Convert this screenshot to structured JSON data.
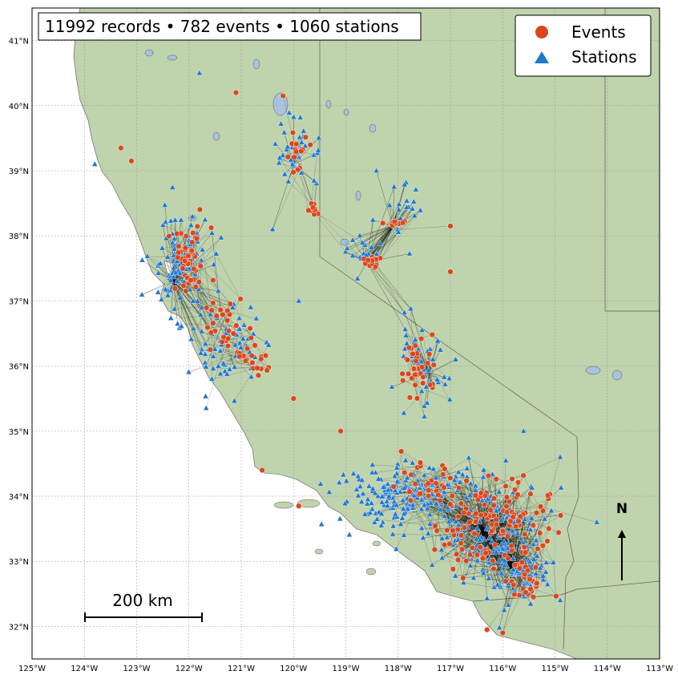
{
  "summary": {
    "text": "11992 records • 782 events • 1060 stations",
    "records": 11992,
    "events": 782,
    "stations": 1060
  },
  "legend": {
    "placement": "top-right",
    "items": [
      {
        "label": "Events",
        "marker": "circle",
        "color": "#d9481c"
      },
      {
        "label": "Stations",
        "marker": "triangle",
        "color": "#1f78d1"
      }
    ]
  },
  "scale_bar": {
    "label": "200 km"
  },
  "north_arrow": {
    "label": "N"
  },
  "colors": {
    "land_foreign": "#bfd3ad",
    "ocean": "#ffffff",
    "lake": "#a9c3de",
    "event": "#d9481c",
    "station": "#1f78d1",
    "path": "#000000",
    "border": "#5a5a5a"
  },
  "map_extent": {
    "lon_min": -125,
    "lon_max": -113,
    "lat_min": 31.5,
    "lat_max": 41.5
  },
  "axes": {
    "x_ticks": [
      {
        "value": -125,
        "label": "125°W"
      },
      {
        "value": -124,
        "label": "124°W"
      },
      {
        "value": -123,
        "label": "123°W"
      },
      {
        "value": -122,
        "label": "122°W"
      },
      {
        "value": -121,
        "label": "121°W"
      },
      {
        "value": -120,
        "label": "120°W"
      },
      {
        "value": -119,
        "label": "119°W"
      },
      {
        "value": -118,
        "label": "118°W"
      },
      {
        "value": -117,
        "label": "117°W"
      },
      {
        "value": -116,
        "label": "116°W"
      },
      {
        "value": -115,
        "label": "115°W"
      },
      {
        "value": -114,
        "label": "114°W"
      },
      {
        "value": -113,
        "label": "113°W"
      }
    ],
    "y_ticks": [
      {
        "value": 41,
        "label": "41°N"
      },
      {
        "value": 40,
        "label": "40°N"
      },
      {
        "value": 39,
        "label": "39°N"
      },
      {
        "value": 38,
        "label": "38°N"
      },
      {
        "value": 37,
        "label": "37°N"
      },
      {
        "value": 36,
        "label": "36°N"
      },
      {
        "value": 35,
        "label": "35°N"
      },
      {
        "value": 34,
        "label": "34°N"
      },
      {
        "value": 33,
        "label": "33°N"
      },
      {
        "value": 32,
        "label": "32°N"
      }
    ],
    "gridlines": true
  },
  "chart_data": {
    "type": "scatter",
    "series": [
      {
        "name": "Events",
        "marker": "circle",
        "color": "#d9481c"
      },
      {
        "name": "Stations",
        "marker": "triangle",
        "color": "#1f78d1"
      }
    ],
    "event_clusters": [
      {
        "lon": -122.0,
        "lat": 37.6,
        "spread": [
          0.35,
          0.45
        ],
        "n": 45
      },
      {
        "lon": -121.3,
        "lat": 36.6,
        "spread": [
          0.35,
          0.35
        ],
        "n": 30
      },
      {
        "lon": -120.7,
        "lat": 36.0,
        "spread": [
          0.3,
          0.25
        ],
        "n": 16
      },
      {
        "lon": -118.5,
        "lat": 37.6,
        "spread": [
          0.1,
          0.08
        ],
        "n": 18
      },
      {
        "lon": -119.6,
        "lat": 38.4,
        "spread": [
          0.1,
          0.08
        ],
        "n": 12
      },
      {
        "lon": -119.9,
        "lat": 39.3,
        "spread": [
          0.2,
          0.3
        ],
        "n": 14
      },
      {
        "lon": -118.0,
        "lat": 38.2,
        "spread": [
          0.15,
          0.05
        ],
        "n": 10
      },
      {
        "lon": -117.6,
        "lat": 36.0,
        "spread": [
          0.3,
          0.4
        ],
        "n": 35
      },
      {
        "lon": -116.2,
        "lat": 33.6,
        "spread": [
          0.9,
          0.6
        ],
        "n": 130
      },
      {
        "lon": -117.5,
        "lat": 34.2,
        "spread": [
          0.6,
          0.3
        ],
        "n": 30
      },
      {
        "lon": -115.6,
        "lat": 32.7,
        "spread": [
          0.4,
          0.35
        ],
        "n": 30
      }
    ],
    "station_clusters": [
      {
        "lon": -122.2,
        "lat": 37.6,
        "spread": [
          0.4,
          0.55
        ],
        "n": 110
      },
      {
        "lon": -121.3,
        "lat": 36.3,
        "spread": [
          0.45,
          0.45
        ],
        "n": 70
      },
      {
        "lon": -119.9,
        "lat": 39.3,
        "spread": [
          0.35,
          0.4
        ],
        "n": 35
      },
      {
        "lon": -118.6,
        "lat": 37.7,
        "spread": [
          0.25,
          0.2
        ],
        "n": 25
      },
      {
        "lon": -118.0,
        "lat": 38.3,
        "spread": [
          0.4,
          0.35
        ],
        "n": 20
      },
      {
        "lon": -117.6,
        "lat": 35.9,
        "spread": [
          0.4,
          0.5
        ],
        "n": 45
      },
      {
        "lon": -117.8,
        "lat": 34.0,
        "spread": [
          1.0,
          0.35
        ],
        "n": 200
      },
      {
        "lon": -116.1,
        "lat": 33.4,
        "spread": [
          0.7,
          0.6
        ],
        "n": 160
      },
      {
        "lon": -115.6,
        "lat": 32.7,
        "spread": [
          0.4,
          0.35
        ],
        "n": 45
      }
    ],
    "event_hubs": [
      {
        "lon": -118.1,
        "lat": 38.15
      },
      {
        "lon": -118.6,
        "lat": 37.6
      },
      {
        "lon": -117.4,
        "lat": 35.9
      },
      {
        "lon": -120.0,
        "lat": 39.1
      },
      {
        "lon": -122.3,
        "lat": 37.3
      },
      {
        "lon": -116.4,
        "lat": 33.5
      },
      {
        "lon": -115.8,
        "lat": 32.9
      }
    ],
    "isolated_events": [
      {
        "lon": -123.3,
        "lat": 39.35
      },
      {
        "lon": -123.1,
        "lat": 39.15
      },
      {
        "lon": -121.1,
        "lat": 40.2
      },
      {
        "lon": -120.2,
        "lat": 40.15
      },
      {
        "lon": -117.0,
        "lat": 38.15
      },
      {
        "lon": -117.0,
        "lat": 37.45
      },
      {
        "lon": -119.1,
        "lat": 35.0
      },
      {
        "lon": -120.6,
        "lat": 34.4
      },
      {
        "lon": -119.9,
        "lat": 33.85
      },
      {
        "lon": -116.3,
        "lat": 31.95
      },
      {
        "lon": -120.0,
        "lat": 35.5
      },
      {
        "lon": -116.0,
        "lat": 31.9
      }
    ],
    "isolated_stations": [
      {
        "lon": -121.8,
        "lat": 40.5
      },
      {
        "lon": -120.4,
        "lat": 38.1
      },
      {
        "lon": -119.9,
        "lat": 37.0
      },
      {
        "lon": -116.9,
        "lat": 36.1
      },
      {
        "lon": -115.6,
        "lat": 35.0
      },
      {
        "lon": -114.9,
        "lat": 34.6
      },
      {
        "lon": -114.2,
        "lat": 33.6
      },
      {
        "lon": -114.9,
        "lat": 32.4
      },
      {
        "lon": -123.8,
        "lat": 39.1
      }
    ]
  }
}
